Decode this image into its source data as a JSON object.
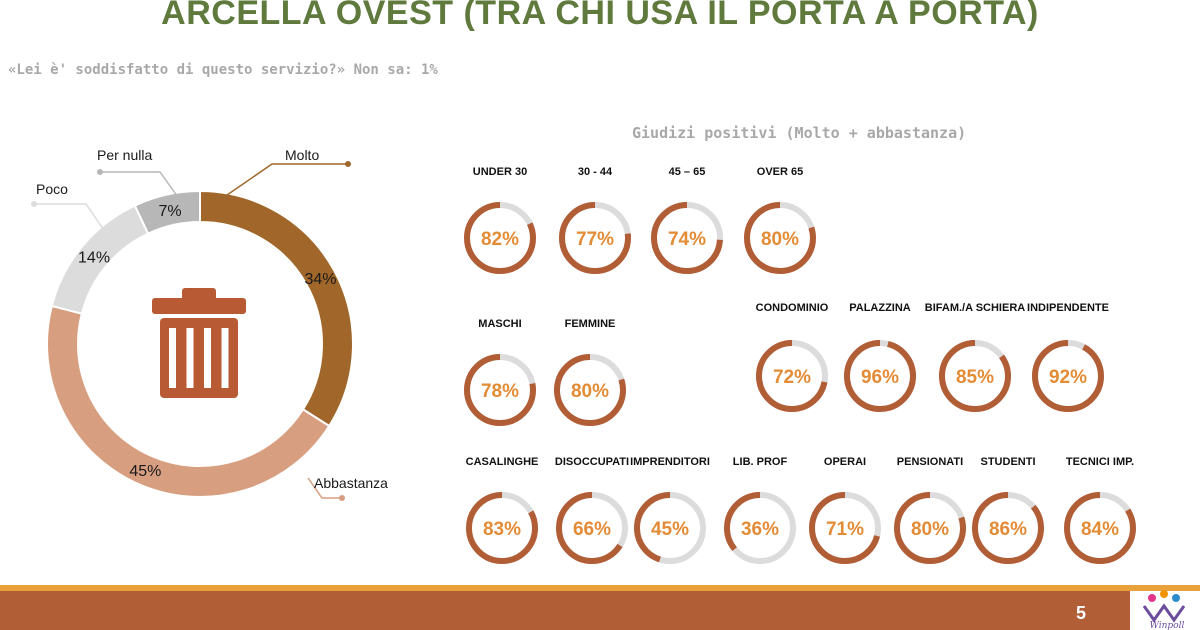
{
  "title": "ARCELLA OVEST (TRA CHI USA IL PORTA A PORTA)",
  "subtitle": "«Lei è' soddisfatto di questo servizio?» Non sa:  1%",
  "section_title": "Giudizi positivi (Molto + abbastanza)",
  "page_number": "5",
  "logo_text": "Winpoll",
  "colors": {
    "title": "#5f7a3c",
    "molto": "#a0662a",
    "abbastanza": "#d89e80",
    "poco": "#dcdcdc",
    "per_nulla": "#b7b7b7",
    "gauge_ring": "#b15d36",
    "gauge_track": "#dcdcdc",
    "gauge_text": "#e38b35",
    "bin_icon": "#b85a33",
    "footer": "#b15d36",
    "footer_line": "#e9a23b"
  },
  "icons": {
    "center": "trash-bin-icon"
  },
  "chart_data": [
    {
      "type": "pie",
      "categories": [
        "Molto",
        "Abbastanza",
        "Poco",
        "Per nulla"
      ],
      "values": [
        34,
        45,
        14,
        7
      ],
      "value_labels": [
        "34%",
        "45%",
        "14%",
        "7%"
      ]
    },
    {
      "type": "bar",
      "categories": [
        "UNDER 30",
        "30 - 44",
        "45 – 65",
        "OVER 65"
      ],
      "values": [
        82,
        77,
        74,
        80
      ],
      "value_labels": [
        "82%",
        "77%",
        "74%",
        "80%"
      ]
    },
    {
      "type": "bar",
      "categories": [
        "MASCHI",
        "FEMMINE"
      ],
      "values": [
        78,
        80
      ],
      "value_labels": [
        "78%",
        "80%"
      ]
    },
    {
      "type": "bar",
      "categories": [
        "CONDOMINIO",
        "PALAZZINA",
        "BIFAM./A SCHIERA",
        "INDIPENDENTE"
      ],
      "values": [
        72,
        96,
        85,
        92
      ],
      "value_labels": [
        "72%",
        "96%",
        "85%",
        "92%"
      ]
    },
    {
      "type": "bar",
      "categories": [
        "CASALINGHE",
        "DISOCCUPATI",
        "IMPRENDITORI",
        "LIB. PROF",
        "OPERAI",
        "PENSIONATI",
        "STUDENTI",
        "TECNICI IMP."
      ],
      "values": [
        83,
        66,
        45,
        36,
        71,
        80,
        86,
        84
      ],
      "value_labels": [
        "83%",
        "66%",
        "45%",
        "36%",
        "71%",
        "80%",
        "86%",
        "84%"
      ]
    }
  ]
}
